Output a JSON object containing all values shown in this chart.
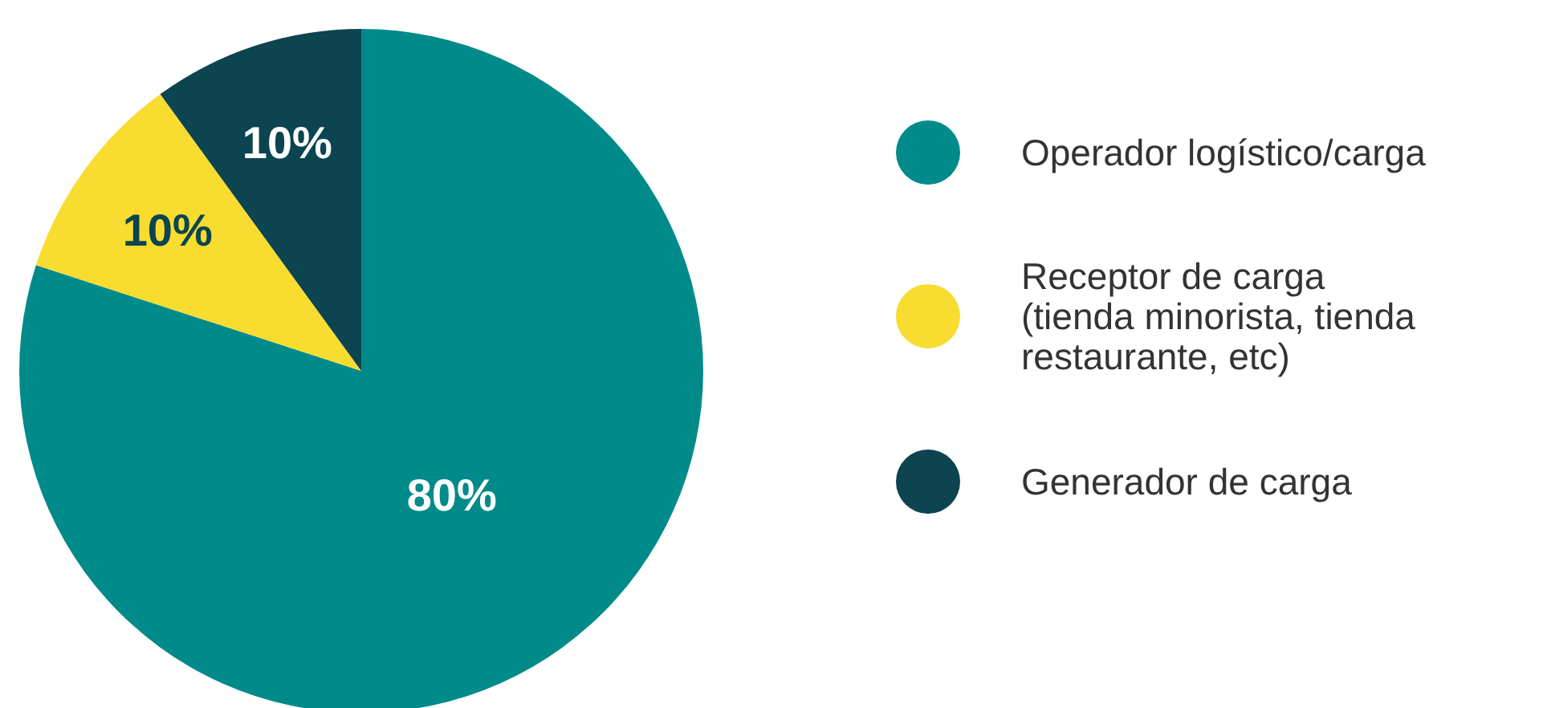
{
  "chart_data": {
    "type": "pie",
    "categories": [
      "Operador logístico/carga",
      "Receptor de carga (tienda minorista, tienda restaurante, etc)",
      "Generador de carga"
    ],
    "values": [
      80,
      10,
      10
    ],
    "colors": [
      "#008b8a",
      "#f9dc30",
      "#0c4450"
    ],
    "value_labels": [
      "80%",
      "10%",
      "10%"
    ],
    "legend": "right"
  }
}
